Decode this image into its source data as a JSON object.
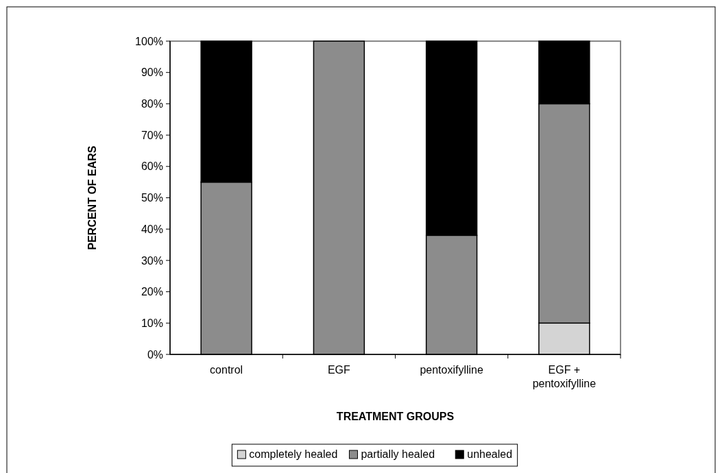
{
  "chart_data": {
    "type": "bar",
    "stacked": true,
    "xlabel": "TREATMENT GROUPS",
    "ylabel": "PERCENT OF EARS",
    "categories": [
      "control",
      "EGF",
      "pentoxifylline",
      "EGF + pentoxifylline"
    ],
    "series": [
      {
        "name": "completely healed",
        "color": "#d4d4d4",
        "values": [
          0,
          0,
          0,
          10
        ]
      },
      {
        "name": "partially healed",
        "color": "#8c8c8c",
        "values": [
          55,
          100,
          38,
          70
        ]
      },
      {
        "name": "unhealed",
        "color": "#000000",
        "values": [
          45,
          0,
          62,
          20
        ]
      }
    ],
    "ylim": [
      0,
      100
    ],
    "yticks": [
      {
        "value": 0,
        "label": "0%"
      },
      {
        "value": 10,
        "label": "10%"
      },
      {
        "value": 20,
        "label": "20%"
      },
      {
        "value": 30,
        "label": "30%"
      },
      {
        "value": 40,
        "label": "40%"
      },
      {
        "value": 50,
        "label": "50%"
      },
      {
        "value": 60,
        "label": "60%"
      },
      {
        "value": 70,
        "label": "70%"
      },
      {
        "value": 80,
        "label": "80%"
      },
      {
        "value": 90,
        "label": "90%"
      },
      {
        "value": 100,
        "label": "100%"
      }
    ],
    "legend": "bottom",
    "grid": false
  }
}
